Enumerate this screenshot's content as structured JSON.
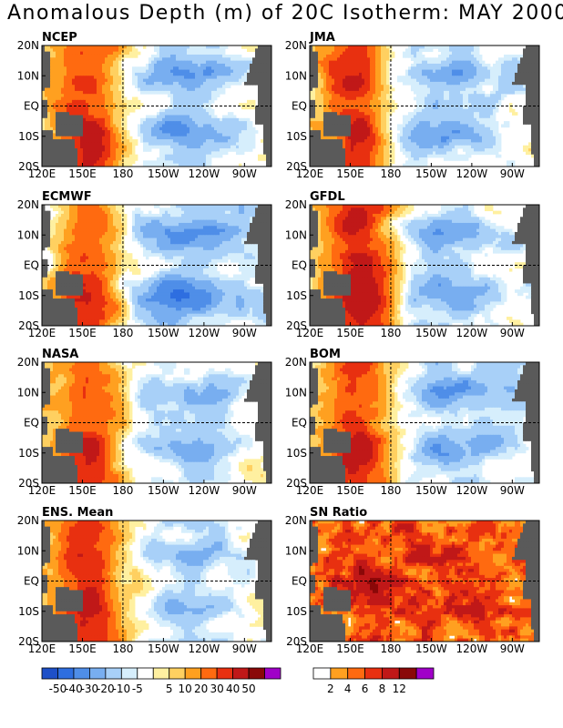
{
  "title": "Anomalous Depth (m) of 20C Isotherm: MAY 2000",
  "colors": {
    "anom_scale": [
      "#1e50c8",
      "#2e6ee0",
      "#4f8ee8",
      "#78aef0",
      "#a8d0f8",
      "#d6eefc",
      "#ffffff",
      "#fff0a0",
      "#ffd060",
      "#ffa020",
      "#ff6a10",
      "#e83010",
      "#c01818",
      "#8a0808",
      "#a000c8"
    ],
    "sn_scale": [
      "#ffffff",
      "#ffa020",
      "#ff6a10",
      "#e83010",
      "#c01818",
      "#8a0808",
      "#a000c8"
    ],
    "land": "#5a5a5a"
  },
  "chart_data": [
    {
      "type": "heatmap",
      "title": "NCEP",
      "x_tick_labels": [
        "120E",
        "150E",
        "180",
        "150W",
        "120W",
        "90W"
      ],
      "y_tick_labels": [
        "20N",
        "10N",
        "EQ",
        "10S",
        "20S"
      ],
      "xlim": [
        120,
        290
      ],
      "ylim": [
        -20,
        20
      ],
      "colorbar": "anom",
      "pattern": "ncep"
    },
    {
      "type": "heatmap",
      "title": "JMA",
      "x_tick_labels": [
        "120E",
        "150E",
        "180",
        "150W",
        "120W",
        "90W"
      ],
      "y_tick_labels": [
        "20N",
        "10N",
        "EQ",
        "10S",
        "20S"
      ],
      "xlim": [
        120,
        290
      ],
      "ylim": [
        -20,
        20
      ],
      "colorbar": "anom",
      "pattern": "jma"
    },
    {
      "type": "heatmap",
      "title": "ECMWF",
      "x_tick_labels": [
        "120E",
        "150E",
        "180",
        "150W",
        "120W",
        "90W"
      ],
      "y_tick_labels": [
        "20N",
        "10N",
        "EQ",
        "10S",
        "20S"
      ],
      "xlim": [
        120,
        290
      ],
      "ylim": [
        -20,
        20
      ],
      "colorbar": "anom",
      "pattern": "ecmwf"
    },
    {
      "type": "heatmap",
      "title": "GFDL",
      "x_tick_labels": [
        "120E",
        "150E",
        "180",
        "150W",
        "120W",
        "90W"
      ],
      "y_tick_labels": [
        "20N",
        "10N",
        "EQ",
        "10S",
        "20S"
      ],
      "xlim": [
        120,
        290
      ],
      "ylim": [
        -20,
        20
      ],
      "colorbar": "anom",
      "pattern": "gfdl"
    },
    {
      "type": "heatmap",
      "title": "NASA",
      "x_tick_labels": [
        "120E",
        "150E",
        "180",
        "150W",
        "120W",
        "90W"
      ],
      "y_tick_labels": [
        "20N",
        "10N",
        "EQ",
        "10S",
        "20S"
      ],
      "xlim": [
        120,
        290
      ],
      "ylim": [
        -20,
        20
      ],
      "colorbar": "anom",
      "pattern": "nasa"
    },
    {
      "type": "heatmap",
      "title": "BOM",
      "x_tick_labels": [
        "120E",
        "150E",
        "180",
        "150W",
        "120W",
        "90W"
      ],
      "y_tick_labels": [
        "20N",
        "10N",
        "EQ",
        "10S",
        "20S"
      ],
      "xlim": [
        120,
        290
      ],
      "ylim": [
        -20,
        20
      ],
      "colorbar": "anom",
      "pattern": "bom"
    },
    {
      "type": "heatmap",
      "title": "ENS. Mean",
      "x_tick_labels": [
        "120E",
        "150E",
        "180",
        "150W",
        "120W",
        "90W"
      ],
      "y_tick_labels": [
        "20N",
        "10N",
        "EQ",
        "10S",
        "20S"
      ],
      "xlim": [
        120,
        290
      ],
      "ylim": [
        -20,
        20
      ],
      "colorbar": "anom",
      "pattern": "ens"
    },
    {
      "type": "heatmap",
      "title": "SN Ratio",
      "x_tick_labels": [
        "120E",
        "150E",
        "180",
        "150W",
        "120W",
        "90W"
      ],
      "y_tick_labels": [
        "20N",
        "10N",
        "EQ",
        "10S",
        "20S"
      ],
      "xlim": [
        120,
        290
      ],
      "ylim": [
        -20,
        20
      ],
      "colorbar": "sn",
      "pattern": "sn"
    }
  ],
  "colorbars": {
    "anom": {
      "labels": [
        "-50",
        "-40",
        "-30",
        "-20",
        "-10",
        "-5",
        "5",
        "10",
        "20",
        "30",
        "40",
        "50"
      ]
    },
    "sn": {
      "labels": [
        "2",
        "4",
        "6",
        "8",
        "12"
      ]
    }
  }
}
